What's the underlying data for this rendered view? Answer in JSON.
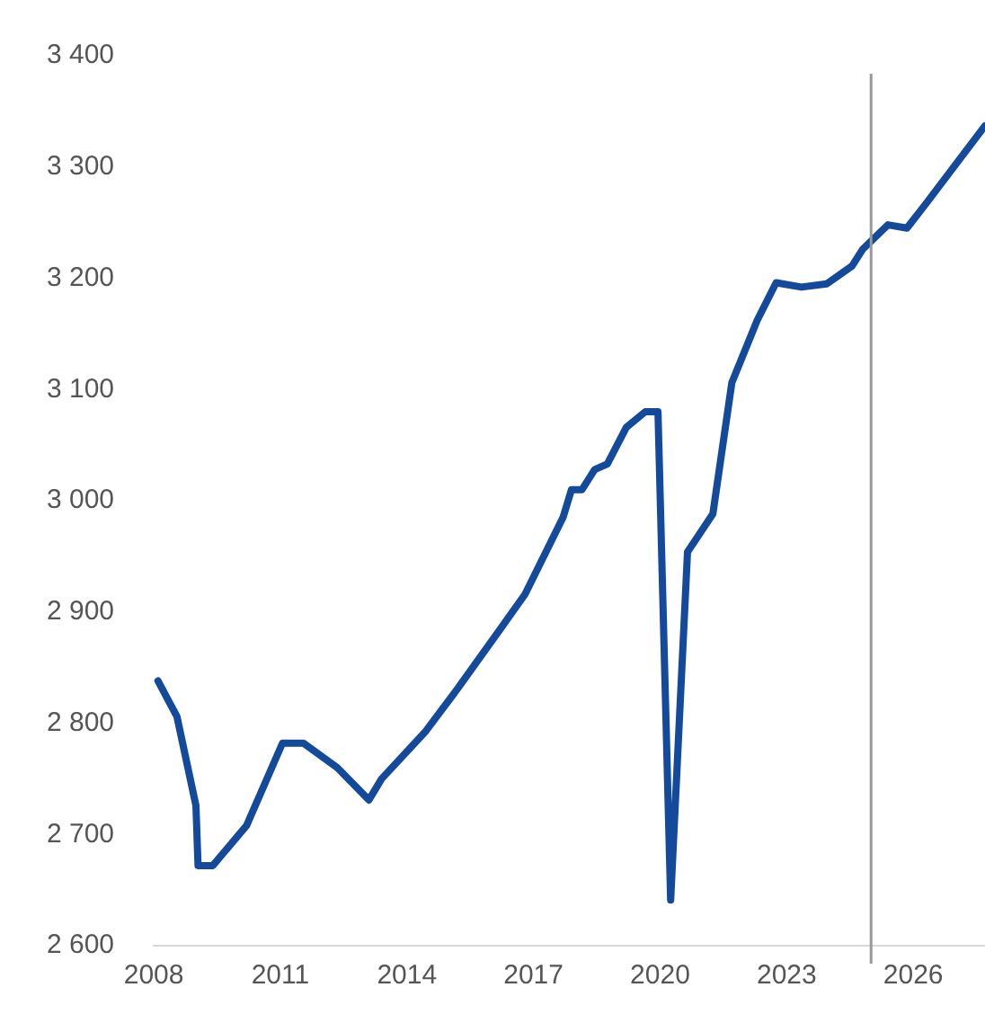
{
  "chart_data": {
    "type": "line",
    "x": [
      2008.1,
      2008.55,
      2009.0,
      2009.05,
      2009.4,
      2010.2,
      2011.05,
      2011.55,
      2012.35,
      2013.1,
      2013.4,
      2014.45,
      2015.2,
      2016.2,
      2016.8,
      2017.7,
      2017.9,
      2018.15,
      2018.45,
      2018.75,
      2019.2,
      2019.65,
      2019.95,
      2020.25,
      2020.65,
      2021.25,
      2021.7,
      2022.3,
      2022.75,
      2023.35,
      2023.95,
      2024.55,
      2024.8,
      2025.4,
      2025.85,
      2026.3,
      2027.7
    ],
    "series": [
      {
        "color": "#134a9c",
        "values": [
          2838,
          2806,
          2726,
          2672,
          2672,
          2708,
          2782,
          2782,
          2760,
          2731,
          2750,
          2793,
          2831,
          2884,
          2916,
          2985,
          3010,
          3010,
          3028,
          3033,
          3066,
          3080,
          3080,
          2641,
          2954,
          2988,
          3106,
          3162,
          3196,
          3192,
          3195,
          3211,
          3226,
          3248,
          3245,
          3267,
          3337
        ]
      }
    ],
    "xlim": [
      2008,
      2027.7
    ],
    "xticks": [
      2008,
      2011,
      2014,
      2017,
      2020,
      2023,
      2026
    ],
    "ylim": [
      2600,
      3400
    ],
    "yticks": [
      {
        "value": 2600,
        "label": "2 600"
      },
      {
        "value": 2700,
        "label": "2 700"
      },
      {
        "value": 2800,
        "label": "2 800"
      },
      {
        "value": 2900,
        "label": "2 900"
      },
      {
        "value": 3000,
        "label": "3 000"
      },
      {
        "value": 3100,
        "label": "3 100"
      },
      {
        "value": 3200,
        "label": "3 200"
      },
      {
        "value": 3300,
        "label": "3 300"
      },
      {
        "value": 3400,
        "label": "3 400"
      }
    ],
    "ref_lines": [
      {
        "axis": "x",
        "value": 2025,
        "color": "#999999"
      }
    ],
    "grid": false,
    "legend": false,
    "marker": "none",
    "line_style": "solid"
  }
}
